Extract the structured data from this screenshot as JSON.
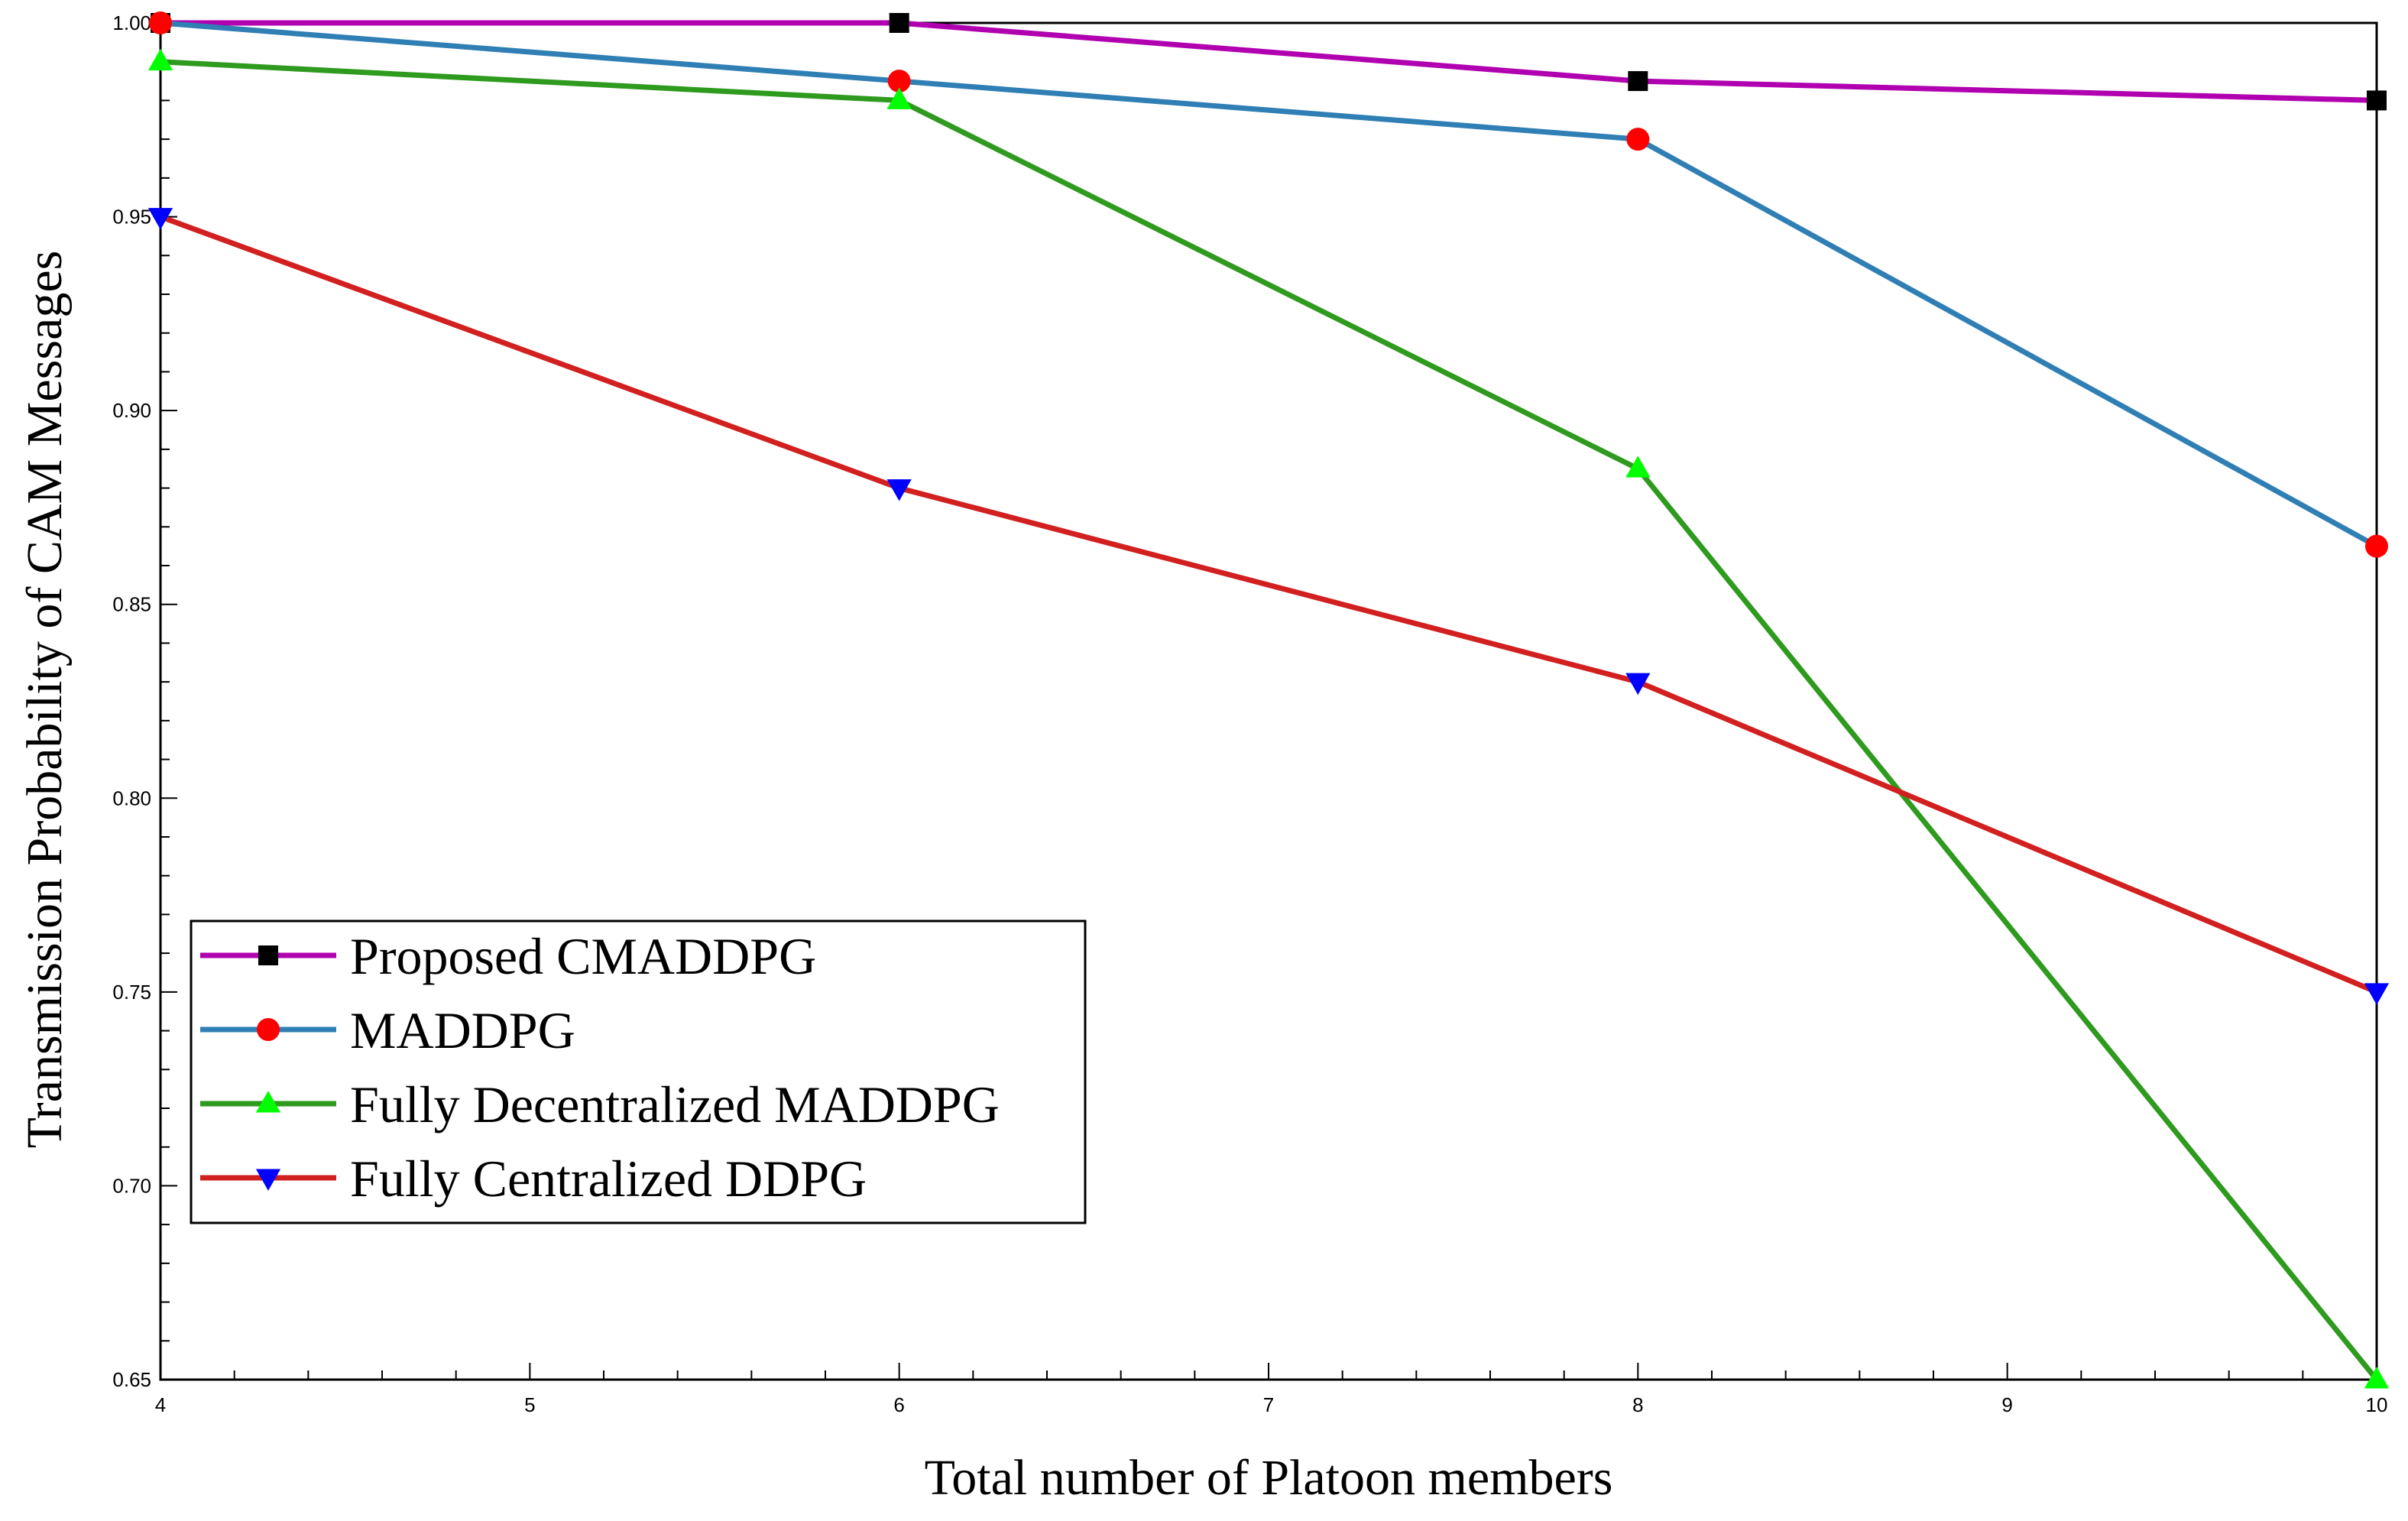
{
  "chart_data": {
    "type": "line",
    "title": "",
    "xlabel": "Total number of Platoon members",
    "ylabel": "Transmission Probability of CAM Messages",
    "x": [
      4,
      6,
      8,
      10
    ],
    "xlim": [
      4,
      10
    ],
    "ylim": [
      0.65,
      1.0
    ],
    "x_ticks": [
      "4",
      "5",
      "6",
      "7",
      "8",
      "9",
      "10"
    ],
    "y_ticks": [
      "0.65",
      "0.70",
      "0.75",
      "0.80",
      "0.85",
      "0.90",
      "0.95",
      "1.00"
    ],
    "grid": false,
    "legend_position": "bottom-left",
    "series": [
      {
        "name": "Proposed CMADDPG",
        "values": [
          1.0,
          1.0,
          0.985,
          0.98
        ],
        "line_color": "#b000b0",
        "marker": "square",
        "marker_color": "#000000"
      },
      {
        "name": "MADDPG",
        "values": [
          1.0,
          0.985,
          0.97,
          0.865
        ],
        "line_color": "#2f7fb5",
        "marker": "circle",
        "marker_color": "#ff0000"
      },
      {
        "name": "Fully Decentralized MADDPG",
        "values": [
          0.99,
          0.98,
          0.885,
          0.65
        ],
        "line_color": "#2e9a1e",
        "marker": "triangle-up",
        "marker_color": "#00ff00"
      },
      {
        "name": "Fully Centralized DDPG",
        "values": [
          0.95,
          0.88,
          0.83,
          0.75
        ],
        "line_color": "#d21f1f",
        "marker": "triangle-down",
        "marker_color": "#0000ff"
      }
    ]
  }
}
